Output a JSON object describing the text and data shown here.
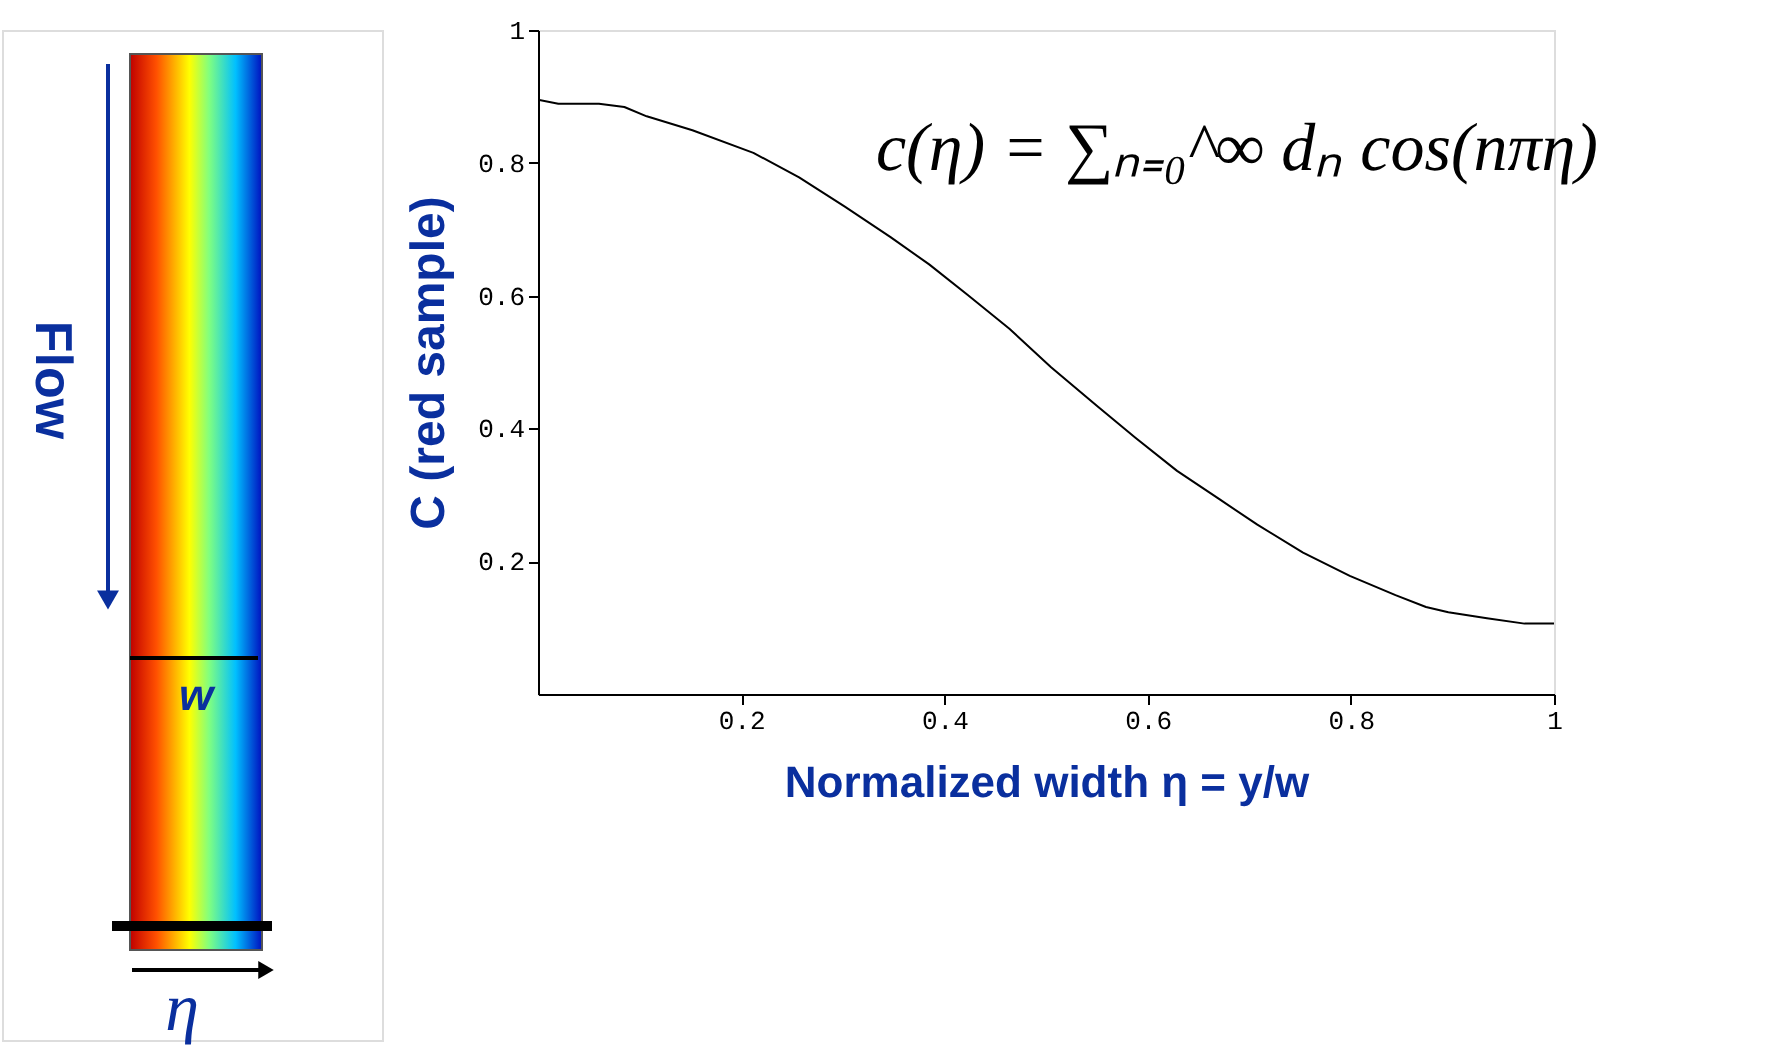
{
  "chart_data": {
    "type": "line",
    "xlabel": "Normalized width  η = y/w",
    "ylabel": "C (red sample)",
    "x": [
      0,
      0.02,
      0.06,
      0.085,
      0.107,
      0.152,
      0.212,
      0.257,
      0.302,
      0.347,
      0.385,
      0.423,
      0.464,
      0.505,
      0.55,
      0.588,
      0.629,
      0.671,
      0.708,
      0.753,
      0.799,
      0.844,
      0.874,
      0.896,
      0.934,
      0.971,
      1
    ],
    "series": [
      {
        "color": "#000000",
        "values": [
          0.895,
          0.889,
          0.889,
          0.884,
          0.87,
          0.849,
          0.815,
          0.778,
          0.734,
          0.688,
          0.647,
          0.601,
          0.55,
          0.492,
          0.434,
          0.386,
          0.336,
          0.293,
          0.255,
          0.213,
          0.178,
          0.149,
          0.131,
          0.123,
          0.114,
          0.106,
          0.106
        ]
      }
    ],
    "xlim": [
      0,
      1
    ],
    "ylim": [
      0,
      1
    ],
    "xticks": [
      0.2,
      0.4,
      0.6,
      0.8,
      1
    ],
    "yticks": [
      0.2,
      0.4,
      0.6,
      0.8,
      1
    ],
    "grid": false,
    "marker": "none",
    "line_style": "solid",
    "annotations": [
      "c(η) = ∑ₙ₌₀^∞ dₙ cos(nπη)",
      "Flow",
      "w",
      "η"
    ]
  }
}
